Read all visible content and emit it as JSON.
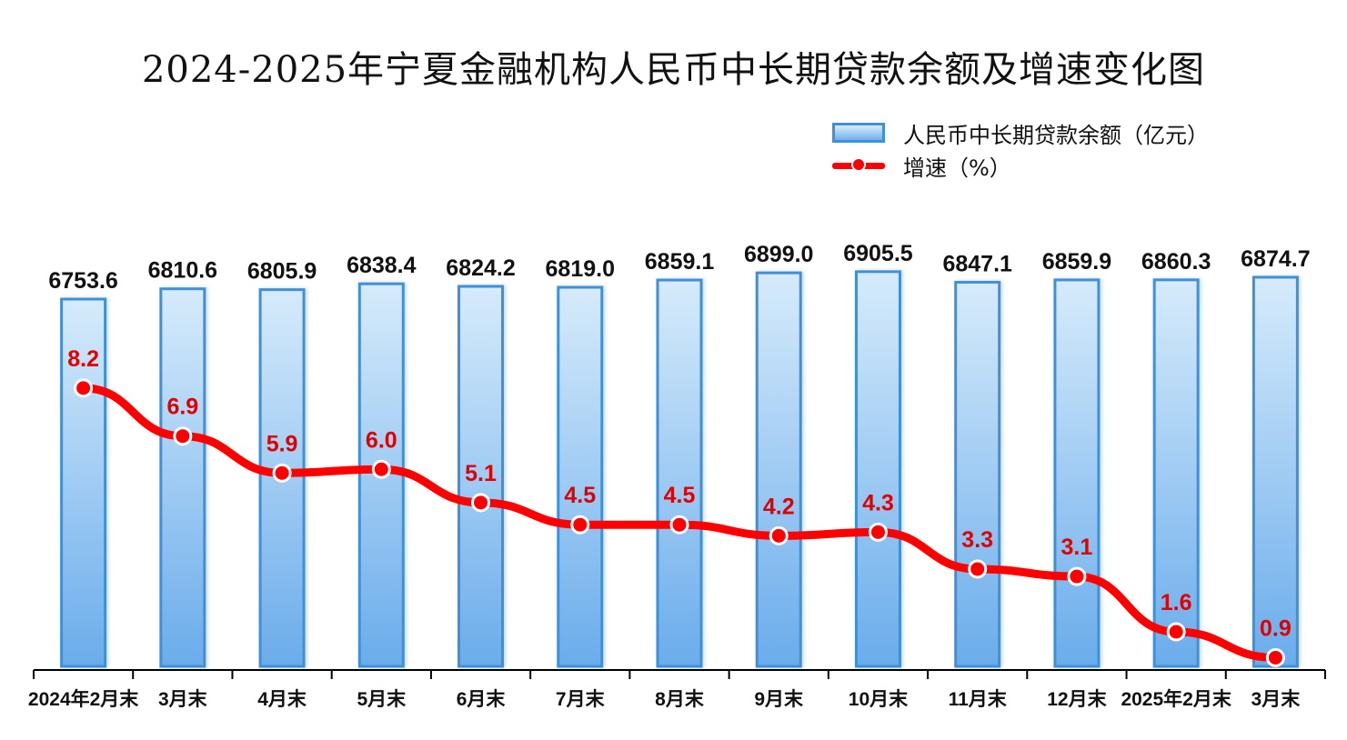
{
  "title": "2024-2025年宁夏金融机构人民币中长期贷款余额及增速变化图",
  "legend": {
    "bar_label": "人民币中长期贷款余额（亿元）",
    "line_label": "增速（%）"
  },
  "colors": {
    "bar_top": "#d6ebfb",
    "bar_bottom": "#6aaceb",
    "bar_border": "#3f8fd9",
    "line": "#ff0000",
    "line_label": "#e00000",
    "bar_label": "#111111"
  },
  "chart_data": {
    "type": "bar+line",
    "categories": [
      "2024年2月末",
      "3月末",
      "4月末",
      "5月末",
      "6月末",
      "7月末",
      "8月末",
      "9月末",
      "10月末",
      "11月末",
      "12月末",
      "2025年2月末",
      "3月末"
    ],
    "series": [
      {
        "name": "人民币中长期贷款余额（亿元）",
        "type": "bar",
        "values": [
          6753.6,
          6810.6,
          6805.9,
          6838.4,
          6824.2,
          6819.0,
          6859.1,
          6899.0,
          6905.5,
          6847.1,
          6859.9,
          6860.3,
          6874.7
        ]
      },
      {
        "name": "增速（%）",
        "type": "line",
        "values": [
          8.2,
          6.9,
          5.9,
          6.0,
          5.1,
          4.5,
          4.5,
          4.2,
          4.3,
          3.3,
          3.1,
          1.6,
          0.9
        ]
      }
    ],
    "bar_axis_range": [
      4700,
      6950
    ],
    "line_axis_range": [
      0,
      16
    ],
    "grid": false,
    "legend_position": "top-right"
  }
}
